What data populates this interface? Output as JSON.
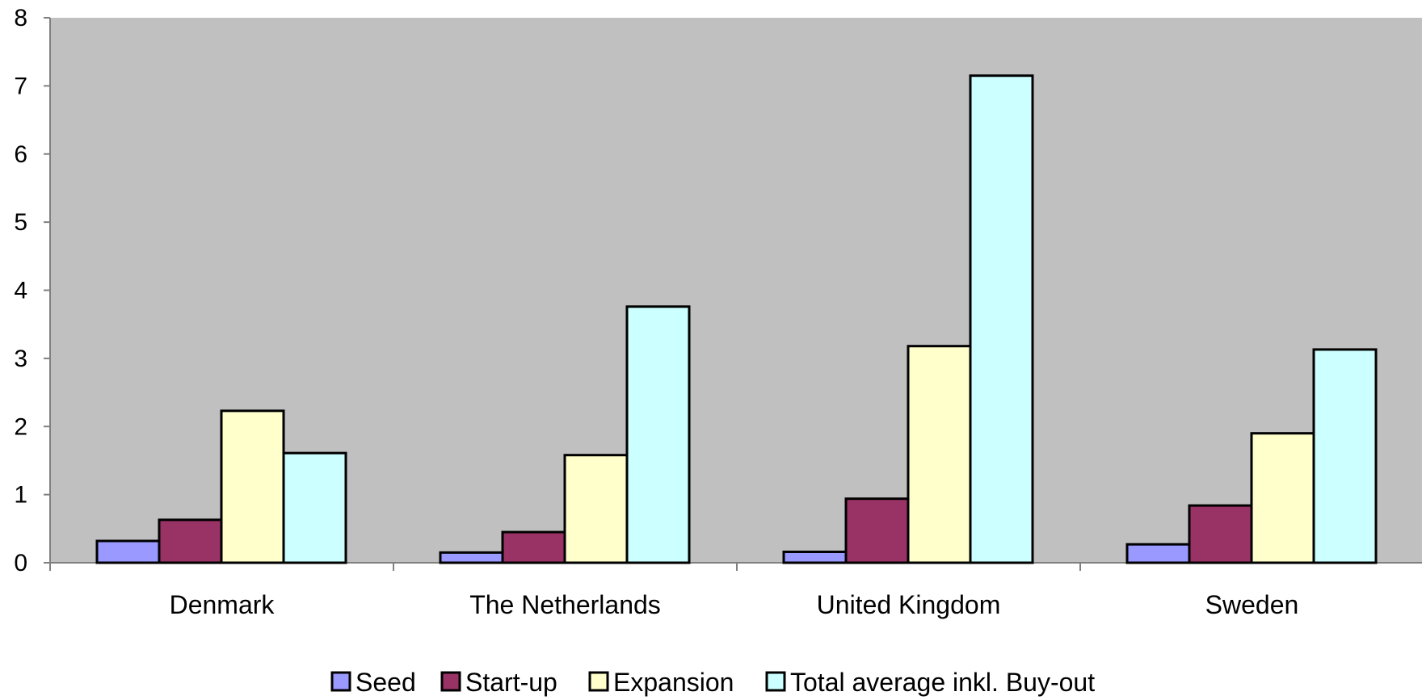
{
  "chart_data": {
    "type": "bar",
    "categories": [
      "Denmark",
      "The Netherlands",
      "United Kingdom",
      "Sweden"
    ],
    "series": [
      {
        "name": "Seed",
        "color": "#9999ff",
        "values": [
          0.32,
          0.15,
          0.16,
          0.27
        ]
      },
      {
        "name": "Start-up",
        "color": "#993366",
        "values": [
          0.63,
          0.45,
          0.94,
          0.84
        ]
      },
      {
        "name": "Expansion",
        "color": "#ffffcc",
        "values": [
          2.23,
          1.58,
          3.18,
          1.9
        ]
      },
      {
        "name": "Total average inkl. Buy-out",
        "color": "#ccffff",
        "values": [
          1.61,
          3.76,
          7.15,
          3.13
        ]
      }
    ],
    "ylim": [
      0,
      8
    ],
    "yticks": [
      "0",
      "1",
      "2",
      "3",
      "4",
      "5",
      "6",
      "7",
      "8"
    ],
    "xlabel": "",
    "ylabel": "",
    "title": "",
    "grid": false,
    "plot_background": "#c0c0c0",
    "legend_position": "bottom"
  }
}
